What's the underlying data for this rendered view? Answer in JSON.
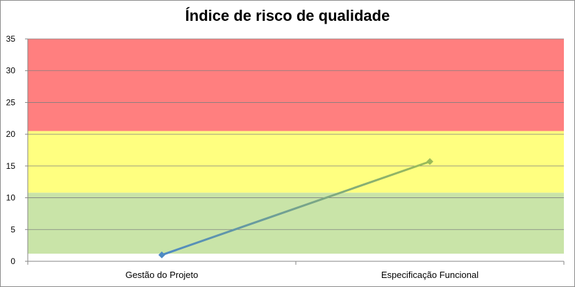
{
  "chart_data": {
    "type": "line",
    "title": "Índice de risco de qualidade",
    "categories": [
      "Gestão do Projeto",
      "Especificação Funcional"
    ],
    "series": [
      {
        "values": [
          1,
          15.7
        ]
      }
    ],
    "ylim": [
      0,
      35
    ],
    "yticks": [
      0,
      5,
      10,
      15,
      20,
      25,
      30,
      35
    ],
    "grid": true,
    "bands": [
      {
        "from": 1.2,
        "to": 10.8,
        "color": "#c9e4a8"
      },
      {
        "from": 10.8,
        "to": 20.5,
        "color": "#ffff80"
      },
      {
        "from": 20.5,
        "to": 35,
        "color": "#ff7f7f"
      }
    ],
    "line_color_start": "#4e8ac4",
    "line_color_end": "#9bbb59",
    "marker_color": "#4e8ac4"
  }
}
